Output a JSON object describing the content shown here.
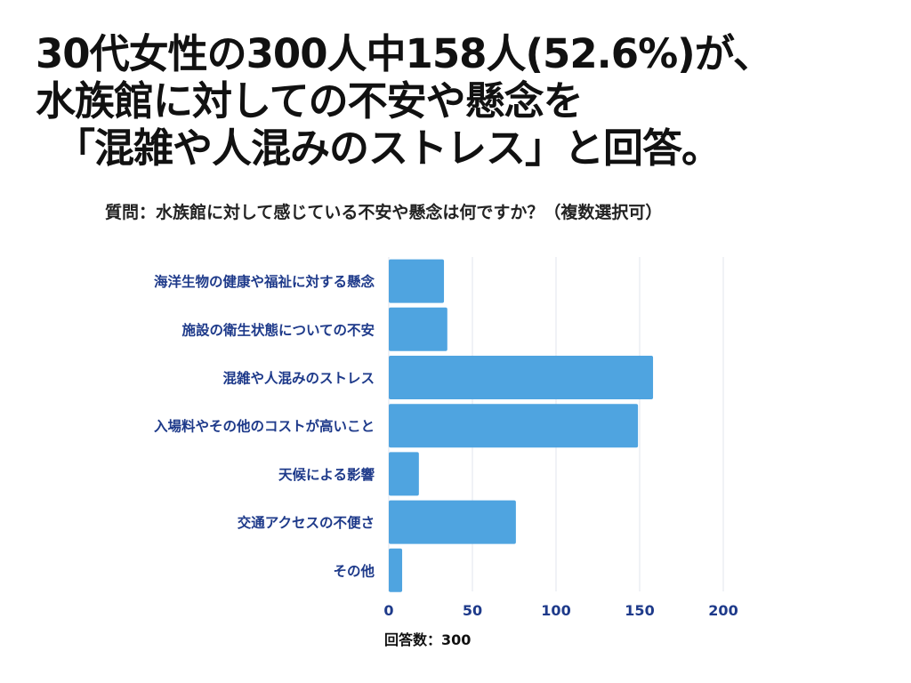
{
  "headline": {
    "line1": "30代女性の300人中158人(52.6%)が、",
    "line2": "水族館に対しての不安や懸念を",
    "line3": "「混雑や人混みのストレス」と回答。"
  },
  "question": "質問：水族館に対して感じている不安や懸念は何ですか？（複数選択可）",
  "footnote": "回答数：300",
  "colors": {
    "bar": "#4fa4e0",
    "grid": "#e2e4ee",
    "label": "#1e3a8a",
    "headline": "#111111"
  },
  "chart_data": {
    "type": "bar",
    "orientation": "horizontal",
    "categories": [
      "海洋生物の健康や福祉に対する懸念",
      "施設の衛生状態についての不安",
      "混雑や人混みのストレス",
      "入場料やその他のコストが高いこと",
      "天候による影響",
      "交通アクセスの不便さ",
      "その他"
    ],
    "values": [
      33,
      35,
      158,
      149,
      18,
      76,
      8
    ],
    "xlim": [
      0,
      200
    ],
    "xticks": [
      0,
      50,
      100,
      150,
      200
    ],
    "title": "",
    "xlabel": "",
    "ylabel": "",
    "grid": true
  }
}
